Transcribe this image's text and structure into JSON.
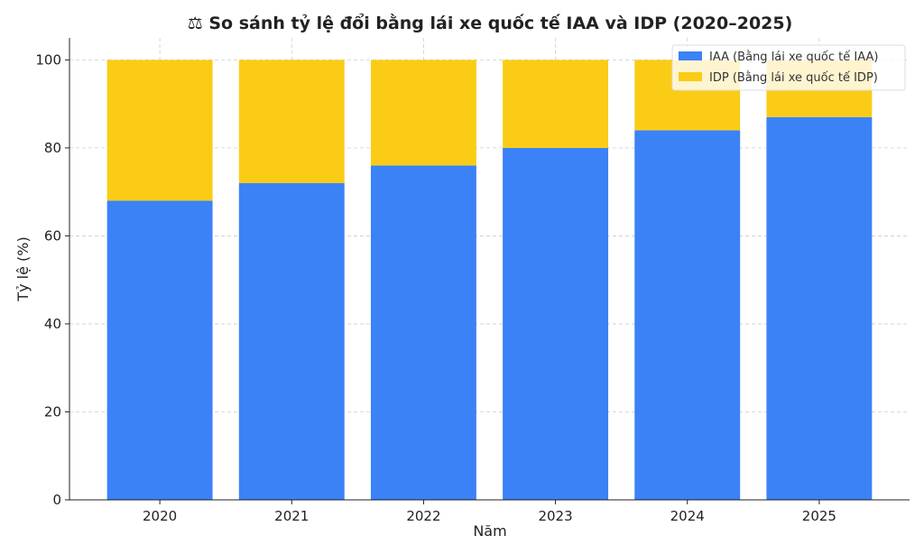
{
  "chart_data": {
    "type": "bar",
    "stacked": true,
    "title": "⚖ So sánh tỷ lệ đổi bằng lái xe quốc tế IAA và IDP (2020–2025)",
    "xlabel": "Năm",
    "ylabel": "Tỷ lệ (%)",
    "categories": [
      "2020",
      "2021",
      "2022",
      "2023",
      "2024",
      "2025"
    ],
    "series": [
      {
        "name": "IAA (Bằng lái xe quốc tế IAA)",
        "values": [
          68,
          72,
          76,
          80,
          84,
          87
        ],
        "color": "#3b82f6"
      },
      {
        "name": "IDP (Bằng lái xe quốc tế IDP)",
        "values": [
          32,
          28,
          24,
          20,
          16,
          13
        ],
        "color": "#facc15"
      }
    ],
    "ylim": [
      0,
      105
    ],
    "yticks": [
      0,
      20,
      40,
      60,
      80,
      100
    ],
    "grid": true,
    "legend": "top-right"
  }
}
